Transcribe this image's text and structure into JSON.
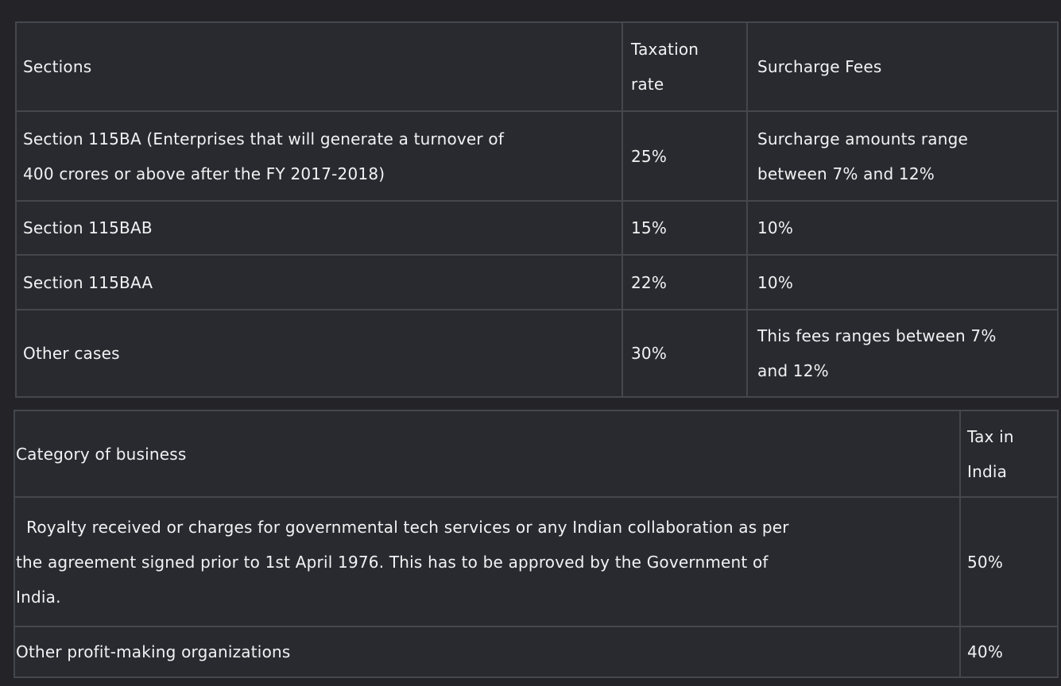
{
  "theme": {
    "page_bg": "#242428",
    "cell_bg": "#292a2f",
    "border_color": "#45474d",
    "text_color": "#f2f2f4"
  },
  "tables": [
    {
      "name": "domestic-company-tax-rates",
      "headers": [
        "Sections",
        "Taxation\nrate",
        "Surcharge Fees"
      ],
      "rows": [
        [
          "Section 115BA (Enterprises that will generate a turnover of\n400 crores or above after the FY 2017-2018)",
          "25%",
          "Surcharge amounts range\nbetween 7% and 12%"
        ],
        [
          "Section 115BAB",
          "15%",
          "10%"
        ],
        [
          "Section 115BAA",
          "22%",
          "10%"
        ],
        [
          "Other cases",
          "30%",
          "This fees ranges between 7%\nand 12%"
        ]
      ]
    },
    {
      "name": "business-category-tax-rates",
      "headers": [
        "Category of business",
        "Tax in\nIndia"
      ],
      "rows": [
        [
          "  Royalty received or charges for governmental tech services or any Indian collaboration as per\nthe agreement signed prior to 1st April 1976. This has to be approved by the Government of\nIndia.",
          "50%"
        ],
        [
          "Other profit-making organizations",
          "40%"
        ]
      ]
    }
  ]
}
